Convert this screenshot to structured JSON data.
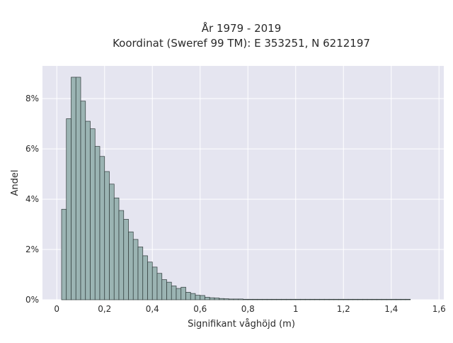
{
  "chart_data": {
    "type": "bar",
    "title": "År 1979 - 2019",
    "subtitle": "Koordinat (Sweref 99 TM): E 353251, N 6212197",
    "xlabel": "Signifikant våghöjd (m)",
    "ylabel": "Andel",
    "xlim": [
      -0.06,
      1.62
    ],
    "ylim": [
      0,
      9.3
    ],
    "x_ticks": [
      0,
      0.2,
      0.4,
      0.6,
      0.8,
      1,
      1.2,
      1.4,
      1.6
    ],
    "x_tick_labels": [
      "0",
      "0,2",
      "0,4",
      "0,6",
      "0,8",
      "1",
      "1,2",
      "1,4",
      "1,6"
    ],
    "y_ticks": [
      0,
      2,
      4,
      6,
      8
    ],
    "y_tick_labels": [
      "0%",
      "2%",
      "4%",
      "6%",
      "8%"
    ],
    "y_unit": "%",
    "bin_width": 0.02,
    "bin_start": 0.02,
    "values": [
      3.6,
      7.2,
      8.85,
      8.85,
      7.9,
      7.1,
      6.8,
      6.1,
      5.7,
      5.1,
      4.6,
      4.05,
      3.55,
      3.2,
      2.7,
      2.4,
      2.1,
      1.75,
      1.5,
      1.3,
      1.05,
      0.8,
      0.7,
      0.55,
      0.45,
      0.5,
      0.3,
      0.25,
      0.18,
      0.17,
      0.1,
      0.08,
      0.07,
      0.05,
      0.04,
      0.03,
      0.03,
      0.03,
      0.02,
      0.02,
      0.02,
      0.02,
      0.02,
      0.02,
      0.02,
      0.02,
      0.02,
      0.02,
      0.02,
      0.02,
      0.02,
      0.02,
      0.02,
      0.02,
      0.02,
      0.02,
      0.02,
      0.02,
      0.02,
      0.02,
      0.02,
      0.02,
      0.02,
      0.02,
      0.02,
      0.02,
      0.02,
      0.02,
      0.02,
      0.02,
      0.02,
      0.02,
      0.02
    ],
    "grid": true,
    "colors": {
      "plot_background": "#e5e5f0",
      "gridline": "#ffffff",
      "bar_fill": "#9bb4b3",
      "bar_stroke": "#2f3a3a"
    }
  }
}
